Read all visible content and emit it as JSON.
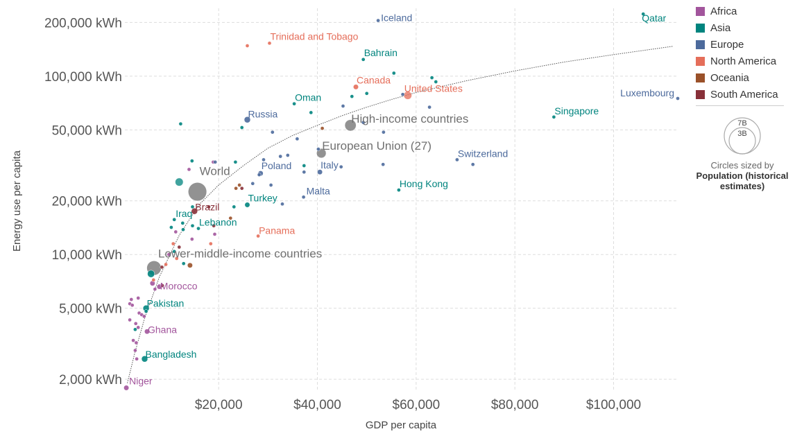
{
  "chart_data": {
    "type": "scatter",
    "xlabel": "GDP per capita",
    "ylabel": "Energy use per capita",
    "x_scale": "linear",
    "y_scale": "log",
    "xlim": [
      1000,
      113000
    ],
    "ylim": [
      1750,
      240000
    ],
    "x_ticks": [
      20000,
      40000,
      60000,
      80000,
      100000
    ],
    "x_tick_labels": [
      "$20,000",
      "$40,000",
      "$60,000",
      "$80,000",
      "$100,000"
    ],
    "y_ticks": [
      2000,
      5000,
      10000,
      20000,
      50000,
      100000,
      200000
    ],
    "y_tick_labels": [
      "2,000 kWh",
      "5,000 kWh",
      "10,000 kWh",
      "20,000 kWh",
      "50,000 kWh",
      "100,000 kWh",
      "200,000 kWh"
    ],
    "grid": true,
    "trend_line": [
      [
        1500,
        1900
      ],
      [
        3000,
        2800
      ],
      [
        5000,
        4400
      ],
      [
        8000,
        7500
      ],
      [
        12000,
        12800
      ],
      [
        16000,
        19000
      ],
      [
        20000,
        24500
      ],
      [
        25000,
        31500
      ],
      [
        30000,
        39500
      ],
      [
        35000,
        46500
      ],
      [
        40000,
        53000
      ],
      [
        45000,
        60000
      ],
      [
        50000,
        67000
      ],
      [
        55000,
        74000
      ],
      [
        60000,
        81000
      ],
      [
        70000,
        94000
      ],
      [
        80000,
        107000
      ],
      [
        90000,
        120000
      ],
      [
        100000,
        132000
      ],
      [
        112000,
        147000
      ]
    ],
    "legend": {
      "position": "right",
      "entries": [
        {
          "name": "Africa",
          "color": "#a2559c"
        },
        {
          "name": "Asia",
          "color": "#00847e"
        },
        {
          "name": "Europe",
          "color": "#4c6a9c"
        },
        {
          "name": "North America",
          "color": "#e56e5a"
        },
        {
          "name": "Oceania",
          "color": "#9a5129"
        },
        {
          "name": "South America",
          "color": "#883039"
        }
      ]
    },
    "aggregate_color": "#6d6d6d",
    "size_legend": {
      "large": "7B",
      "small": "3B",
      "note": "Circles sized by",
      "variable": "Population (historical estimates)"
    },
    "labeled_points": [
      {
        "name": "Iceland",
        "region": "Europe",
        "x": 52300,
        "y": 205000,
        "size": 1
      },
      {
        "name": "Qatar",
        "region": "Asia",
        "x": 106000,
        "y": 223000,
        "size": 1
      },
      {
        "name": "Trinidad and Tobago",
        "region": "North America",
        "x": 30300,
        "y": 153000,
        "size": 1
      },
      {
        "name": "Bahrain",
        "region": "Asia",
        "x": 49300,
        "y": 124000,
        "size": 1
      },
      {
        "name": "Canada",
        "region": "North America",
        "x": 47800,
        "y": 87000,
        "size": 2
      },
      {
        "name": "United States",
        "region": "North America",
        "x": 58300,
        "y": 78000,
        "size": 5
      },
      {
        "name": "Luxembourg",
        "region": "Europe",
        "x": 113000,
        "y": 75000,
        "size": 1
      },
      {
        "name": "Oman",
        "region": "Asia",
        "x": 35300,
        "y": 70000,
        "size": 1
      },
      {
        "name": "Russia",
        "region": "Europe",
        "x": 25800,
        "y": 57000,
        "size": 3
      },
      {
        "name": "High-income countries",
        "region": "Aggregate",
        "x": 46700,
        "y": 53000,
        "size": 10
      },
      {
        "name": "Singapore",
        "region": "Asia",
        "x": 87900,
        "y": 59000,
        "size": 1
      },
      {
        "name": "European Union (27)",
        "region": "Aggregate",
        "x": 40800,
        "y": 37000,
        "size": 7
      },
      {
        "name": "Switzerland",
        "region": "Europe",
        "x": 68300,
        "y": 34000,
        "size": 1
      },
      {
        "name": "World",
        "region": "Aggregate",
        "x": 15700,
        "y": 22500,
        "size": 26
      },
      {
        "name": "Poland",
        "region": "Europe",
        "x": 28500,
        "y": 28500,
        "size": 2
      },
      {
        "name": "Italy",
        "region": "Europe",
        "x": 40500,
        "y": 29000,
        "size": 2
      },
      {
        "name": "Hong Kong",
        "region": "Asia",
        "x": 56500,
        "y": 23000,
        "size": 1
      },
      {
        "name": "Malta",
        "region": "Europe",
        "x": 37200,
        "y": 21000,
        "size": 1
      },
      {
        "name": "Turkey",
        "region": "Asia",
        "x": 25800,
        "y": 19000,
        "size": 2
      },
      {
        "name": "Brazil",
        "region": "South America",
        "x": 15100,
        "y": 17500,
        "size": 3
      },
      {
        "name": "Iraq",
        "region": "Asia",
        "x": 11000,
        "y": 15700,
        "size": 1
      },
      {
        "name": "Lebanon",
        "region": "Asia",
        "x": 15900,
        "y": 14000,
        "size": 1
      },
      {
        "name": "Panama",
        "region": "North America",
        "x": 28000,
        "y": 12700,
        "size": 1
      },
      {
        "name": "Lower-middle-income countries",
        "region": "Aggregate",
        "x": 6900,
        "y": 8400,
        "size": 16
      },
      {
        "name": "Morocco",
        "region": "Africa",
        "x": 8000,
        "y": 6600,
        "size": 2
      },
      {
        "name": "Pakistan",
        "region": "Asia",
        "x": 5300,
        "y": 5000,
        "size": 3
      },
      {
        "name": "Ghana",
        "region": "Africa",
        "x": 5500,
        "y": 3700,
        "size": 2
      },
      {
        "name": "Bangladesh",
        "region": "Asia",
        "x": 5000,
        "y": 2600,
        "size": 3
      },
      {
        "name": "Niger",
        "region": "Africa",
        "x": 1300,
        "y": 1790,
        "size": 2
      }
    ],
    "other_points": [
      {
        "region": "Asia",
        "x": 12300,
        "y": 54000,
        "size": 1
      },
      {
        "region": "Asia",
        "x": 24700,
        "y": 51500,
        "size": 1
      },
      {
        "region": "North America",
        "x": 25800,
        "y": 148000,
        "size": 1
      },
      {
        "region": "Asia",
        "x": 55500,
        "y": 104000,
        "size": 1
      },
      {
        "region": "Asia",
        "x": 63200,
        "y": 98000,
        "size": 1
      },
      {
        "region": "Asia",
        "x": 64000,
        "y": 93000,
        "size": 1
      },
      {
        "region": "Asia",
        "x": 50000,
        "y": 80000,
        "size": 1
      },
      {
        "region": "Europe",
        "x": 57300,
        "y": 79000,
        "size": 1
      },
      {
        "region": "Asia",
        "x": 47000,
        "y": 77000,
        "size": 1
      },
      {
        "region": "Europe",
        "x": 45200,
        "y": 68000,
        "size": 1
      },
      {
        "region": "Asia",
        "x": 38700,
        "y": 62500,
        "size": 1
      },
      {
        "region": "Europe",
        "x": 62700,
        "y": 67000,
        "size": 1
      },
      {
        "region": "Europe",
        "x": 49300,
        "y": 55000,
        "size": 1
      },
      {
        "region": "Oceania",
        "x": 41000,
        "y": 51000,
        "size": 1
      },
      {
        "region": "Europe",
        "x": 30900,
        "y": 48500,
        "size": 1
      },
      {
        "region": "Europe",
        "x": 53400,
        "y": 48500,
        "size": 1
      },
      {
        "region": "Europe",
        "x": 35900,
        "y": 44500,
        "size": 1
      },
      {
        "region": "Europe",
        "x": 40200,
        "y": 39000,
        "size": 1
      },
      {
        "region": "Europe",
        "x": 34000,
        "y": 36000,
        "size": 1
      },
      {
        "region": "Europe",
        "x": 32500,
        "y": 35500,
        "size": 1
      },
      {
        "region": "Asia",
        "x": 14600,
        "y": 33500,
        "size": 1
      },
      {
        "region": "Asia",
        "x": 23400,
        "y": 33000,
        "size": 1
      },
      {
        "region": "Africa",
        "x": 18900,
        "y": 33000,
        "size": 1
      },
      {
        "region": "Europe",
        "x": 19300,
        "y": 33000,
        "size": 1
      },
      {
        "region": "Europe",
        "x": 29100,
        "y": 34000,
        "size": 1
      },
      {
        "region": "Asia",
        "x": 37300,
        "y": 31500,
        "size": 1
      },
      {
        "region": "Europe",
        "x": 44800,
        "y": 31000,
        "size": 1
      },
      {
        "region": "Europe",
        "x": 53300,
        "y": 32000,
        "size": 1
      },
      {
        "region": "Europe",
        "x": 71500,
        "y": 32000,
        "size": 1
      },
      {
        "region": "Africa",
        "x": 14000,
        "y": 30000,
        "size": 1
      },
      {
        "region": "Europe",
        "x": 28200,
        "y": 28000,
        "size": 1
      },
      {
        "region": "Europe",
        "x": 37300,
        "y": 29000,
        "size": 1
      },
      {
        "region": "Asia",
        "x": 12000,
        "y": 25500,
        "size": 5
      },
      {
        "region": "Oceania",
        "x": 24200,
        "y": 24500,
        "size": 1
      },
      {
        "region": "Oceania",
        "x": 23500,
        "y": 23500,
        "size": 1
      },
      {
        "region": "South America",
        "x": 24700,
        "y": 23500,
        "size": 1
      },
      {
        "region": "Europe",
        "x": 30600,
        "y": 24500,
        "size": 1
      },
      {
        "region": "Europe",
        "x": 26900,
        "y": 25000,
        "size": 1
      },
      {
        "region": "Europe",
        "x": 32900,
        "y": 19200,
        "size": 1
      },
      {
        "region": "Asia",
        "x": 14700,
        "y": 18500,
        "size": 1
      },
      {
        "region": "South America",
        "x": 18000,
        "y": 18500,
        "size": 1
      },
      {
        "region": "Asia",
        "x": 23100,
        "y": 18500,
        "size": 1
      },
      {
        "region": "Oceania",
        "x": 22400,
        "y": 16000,
        "size": 1
      },
      {
        "region": "Asia",
        "x": 12700,
        "y": 15000,
        "size": 1
      },
      {
        "region": "Asia",
        "x": 14700,
        "y": 14500,
        "size": 1
      },
      {
        "region": "South America",
        "x": 19000,
        "y": 14500,
        "size": 1
      },
      {
        "region": "Asia",
        "x": 10400,
        "y": 14200,
        "size": 1
      },
      {
        "region": "Asia",
        "x": 12800,
        "y": 13800,
        "size": 1
      },
      {
        "region": "Africa",
        "x": 11300,
        "y": 13400,
        "size": 1
      },
      {
        "region": "Africa",
        "x": 19200,
        "y": 13000,
        "size": 1
      },
      {
        "region": "Africa",
        "x": 14600,
        "y": 12200,
        "size": 1
      },
      {
        "region": "North America",
        "x": 10800,
        "y": 11500,
        "size": 1
      },
      {
        "region": "South America",
        "x": 12000,
        "y": 11000,
        "size": 1
      },
      {
        "region": "North America",
        "x": 18400,
        "y": 11500,
        "size": 1
      },
      {
        "region": "Asia",
        "x": 11000,
        "y": 10400,
        "size": 1
      },
      {
        "region": "Africa",
        "x": 9900,
        "y": 10000,
        "size": 1
      },
      {
        "region": "North America",
        "x": 11500,
        "y": 9500,
        "size": 1
      },
      {
        "region": "Asia",
        "x": 12900,
        "y": 8900,
        "size": 1
      },
      {
        "region": "Oceania",
        "x": 14200,
        "y": 8700,
        "size": 2
      },
      {
        "region": "North America",
        "x": 9300,
        "y": 8800,
        "size": 1
      },
      {
        "region": "South America",
        "x": 8500,
        "y": 8500,
        "size": 1
      },
      {
        "region": "Asia",
        "x": 6300,
        "y": 7800,
        "size": 4
      },
      {
        "region": "North America",
        "x": 6800,
        "y": 7200,
        "size": 1
      },
      {
        "region": "Africa",
        "x": 6600,
        "y": 6900,
        "size": 2
      },
      {
        "region": "South America",
        "x": 8600,
        "y": 6700,
        "size": 1
      },
      {
        "region": "Africa",
        "x": 7100,
        "y": 6400,
        "size": 1
      },
      {
        "region": "Africa",
        "x": 3700,
        "y": 5700,
        "size": 1
      },
      {
        "region": "Africa",
        "x": 2300,
        "y": 5600,
        "size": 1
      },
      {
        "region": "Africa",
        "x": 2000,
        "y": 5300,
        "size": 1
      },
      {
        "region": "Africa",
        "x": 2500,
        "y": 5200,
        "size": 1
      },
      {
        "region": "Asia",
        "x": 5300,
        "y": 4800,
        "size": 1
      },
      {
        "region": "Africa",
        "x": 3900,
        "y": 4700,
        "size": 1
      },
      {
        "region": "Africa",
        "x": 4400,
        "y": 4600,
        "size": 1
      },
      {
        "region": "Africa",
        "x": 4900,
        "y": 4500,
        "size": 1
      },
      {
        "region": "Africa",
        "x": 2000,
        "y": 4300,
        "size": 1
      },
      {
        "region": "Africa",
        "x": 3200,
        "y": 4100,
        "size": 1
      },
      {
        "region": "Africa",
        "x": 3700,
        "y": 3900,
        "size": 1
      },
      {
        "region": "Asia",
        "x": 3100,
        "y": 3800,
        "size": 1
      },
      {
        "region": "Africa",
        "x": 2700,
        "y": 3300,
        "size": 1
      },
      {
        "region": "Africa",
        "x": 3300,
        "y": 3200,
        "size": 1
      },
      {
        "region": "Africa",
        "x": 3100,
        "y": 2900,
        "size": 1
      },
      {
        "region": "Africa",
        "x": 3400,
        "y": 2600,
        "size": 1
      }
    ]
  }
}
